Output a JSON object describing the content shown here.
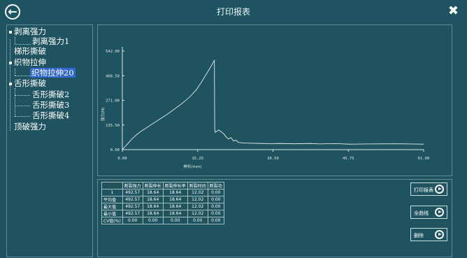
{
  "window": {
    "title": "打印报表"
  },
  "tree": {
    "items": [
      {
        "label": "剥离强力",
        "level": 0
      },
      {
        "label": "剥离强力1",
        "level": 1
      },
      {
        "label": "梯形撕破",
        "level": 0
      },
      {
        "label": "织物拉伸",
        "level": 0
      },
      {
        "label": "织物拉伸20",
        "level": 1,
        "selected": true
      },
      {
        "label": "舌形撕破",
        "level": 0
      },
      {
        "label": "舌形撕破2",
        "level": 1
      },
      {
        "label": "舌形撕破3",
        "level": 1
      },
      {
        "label": "舌形撕破4",
        "level": 1
      },
      {
        "label": "顶破强力",
        "level": 0
      }
    ]
  },
  "chart_data": {
    "type": "line",
    "xlabel": "伸长(mm)",
    "ylabel": "强力(N)",
    "xlim": [
      0,
      61
    ],
    "ylim": [
      0,
      542
    ],
    "x_ticks": [
      "0.00",
      "15.25",
      "30.50",
      "45.75",
      "61.00"
    ],
    "y_ticks": [
      "0.00",
      "135.50",
      "271.00",
      "406.50",
      "542.00"
    ],
    "grid": false,
    "line_color": "#ffffff",
    "series": [
      {
        "x": [
          0,
          0.5,
          1,
          2,
          3,
          4,
          5,
          6,
          7,
          8,
          9,
          10,
          11,
          12,
          13,
          14,
          15,
          16,
          17,
          18,
          18.64,
          18.7,
          18.8,
          19.5,
          20.5,
          21,
          21.5,
          22,
          22.5,
          23,
          23.5,
          24,
          25,
          26,
          28,
          30,
          32,
          35,
          38,
          40,
          43,
          46,
          50,
          55,
          58,
          61
        ],
        "y": [
          0,
          15,
          30,
          60,
          85,
          105,
          122,
          140,
          158,
          175,
          193,
          212,
          232,
          252,
          275,
          300,
          330,
          370,
          415,
          460,
          492.57,
          120,
          95,
          108,
          88,
          70,
          58,
          66,
          48,
          52,
          40,
          38,
          36,
          35,
          34,
          33,
          34,
          32,
          34,
          31,
          33,
          30,
          31,
          32,
          31,
          30
        ]
      }
    ]
  },
  "results_table": {
    "headers": [
      "",
      "断裂强力",
      "断裂伸长",
      "断裂伸长率",
      "断裂时间",
      "断裂功"
    ],
    "rows": [
      [
        "1",
        "492.57",
        "18.64",
        "18.64",
        "12.02",
        "0.00"
      ],
      [
        "平均值",
        "492.57",
        "18.64",
        "18.64",
        "12.02",
        "0.00"
      ],
      [
        "最大值",
        "492.57",
        "18.64",
        "18.64",
        "12.02",
        "0.00"
      ],
      [
        "最小值",
        "492.57",
        "18.64",
        "18.64",
        "12.02",
        "0.00"
      ],
      [
        "CV值(%)",
        "0.00",
        "0.00",
        "0.00",
        "0.00",
        "0.00"
      ]
    ]
  },
  "actions": {
    "print_label": "打印报表",
    "full_curve_label": "全曲线",
    "delete_label": "删除"
  }
}
